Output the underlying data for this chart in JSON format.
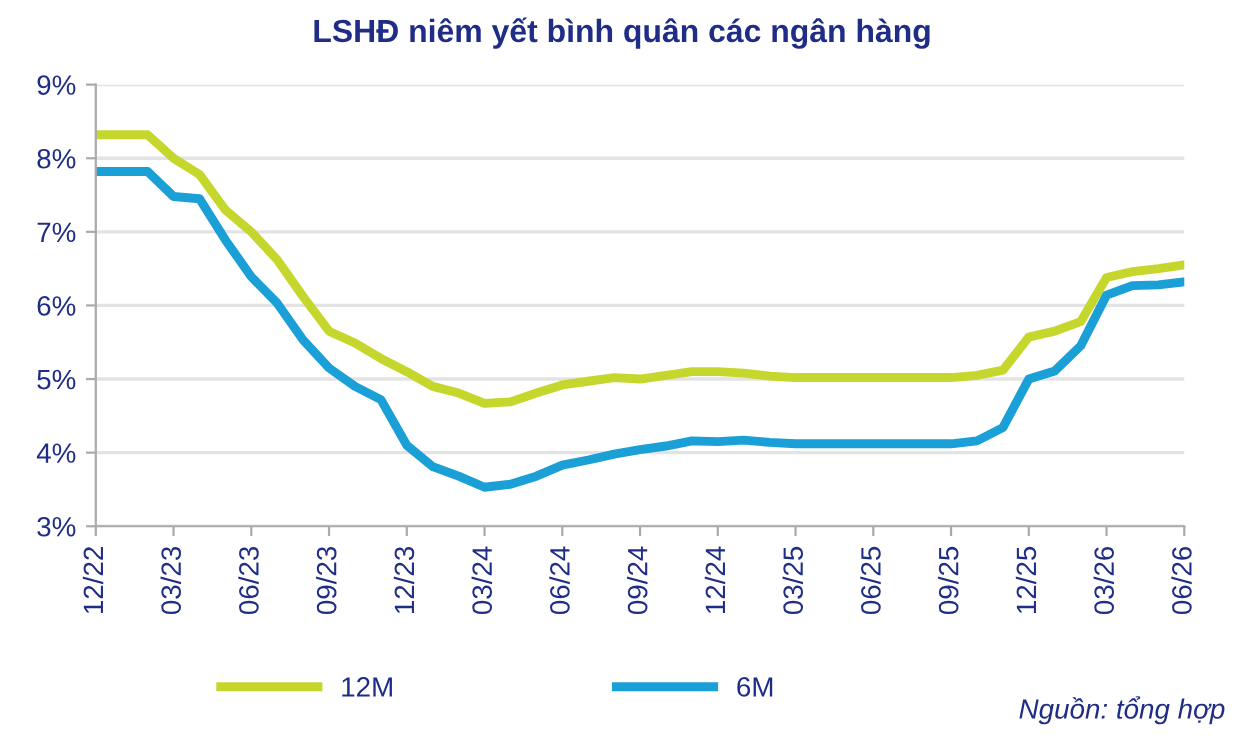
{
  "chart_data": {
    "type": "line",
    "title": "LSHĐ niêm yết bình quân các ngân hàng",
    "categories": [
      "12/22",
      null,
      null,
      "03/23",
      null,
      null,
      "06/23",
      null,
      null,
      "09/23",
      null,
      null,
      "12/23",
      null,
      null,
      "03/24",
      null,
      null,
      "06/24",
      null,
      null,
      "09/24",
      null,
      null,
      "12/24",
      null,
      null,
      "03/25",
      null,
      null,
      "06/25",
      null,
      null,
      "09/25",
      null,
      null,
      "12/25",
      null,
      null,
      "03/26",
      null,
      null,
      "06/26"
    ],
    "series": [
      {
        "name": "12M",
        "color": "#c5d62c",
        "values": [
          8.32,
          8.32,
          8.32,
          8.0,
          7.78,
          7.3,
          7.0,
          6.62,
          6.12,
          5.65,
          5.49,
          5.28,
          5.1,
          4.9,
          4.81,
          4.67,
          4.69,
          4.81,
          4.92,
          4.97,
          5.02,
          5.0,
          5.05,
          5.1,
          5.1,
          5.08,
          5.04,
          5.02,
          5.02,
          5.02,
          5.02,
          5.02,
          5.02,
          5.02,
          5.05,
          5.12,
          5.57,
          5.65,
          5.78,
          6.38,
          6.46,
          6.5,
          6.55
        ]
      },
      {
        "name": "6M",
        "color": "#1a9fd6",
        "values": [
          7.82,
          7.82,
          7.82,
          7.48,
          7.45,
          6.89,
          6.39,
          6.03,
          5.53,
          5.15,
          4.9,
          4.72,
          4.1,
          3.81,
          3.68,
          3.53,
          3.57,
          3.68,
          3.83,
          3.9,
          3.98,
          4.04,
          4.09,
          4.16,
          4.15,
          4.17,
          4.14,
          4.12,
          4.12,
          4.12,
          4.12,
          4.12,
          4.12,
          4.12,
          4.16,
          4.34,
          5.0,
          5.11,
          5.45,
          6.14,
          6.27,
          6.28,
          6.32
        ]
      }
    ],
    "ylim": [
      3,
      9
    ],
    "yticks": [
      {
        "value": 3,
        "label": "3%"
      },
      {
        "value": 4,
        "label": "4%"
      },
      {
        "value": 5,
        "label": "5%"
      },
      {
        "value": 6,
        "label": "6%"
      },
      {
        "value": 7,
        "label": "7%"
      },
      {
        "value": 8,
        "label": "8%"
      },
      {
        "value": 9,
        "label": "9%"
      }
    ],
    "grid": "y",
    "legend": "bottom",
    "marker": "none",
    "line_style": "solid",
    "annotations": [
      "Nguồn: tổng hợp"
    ]
  }
}
